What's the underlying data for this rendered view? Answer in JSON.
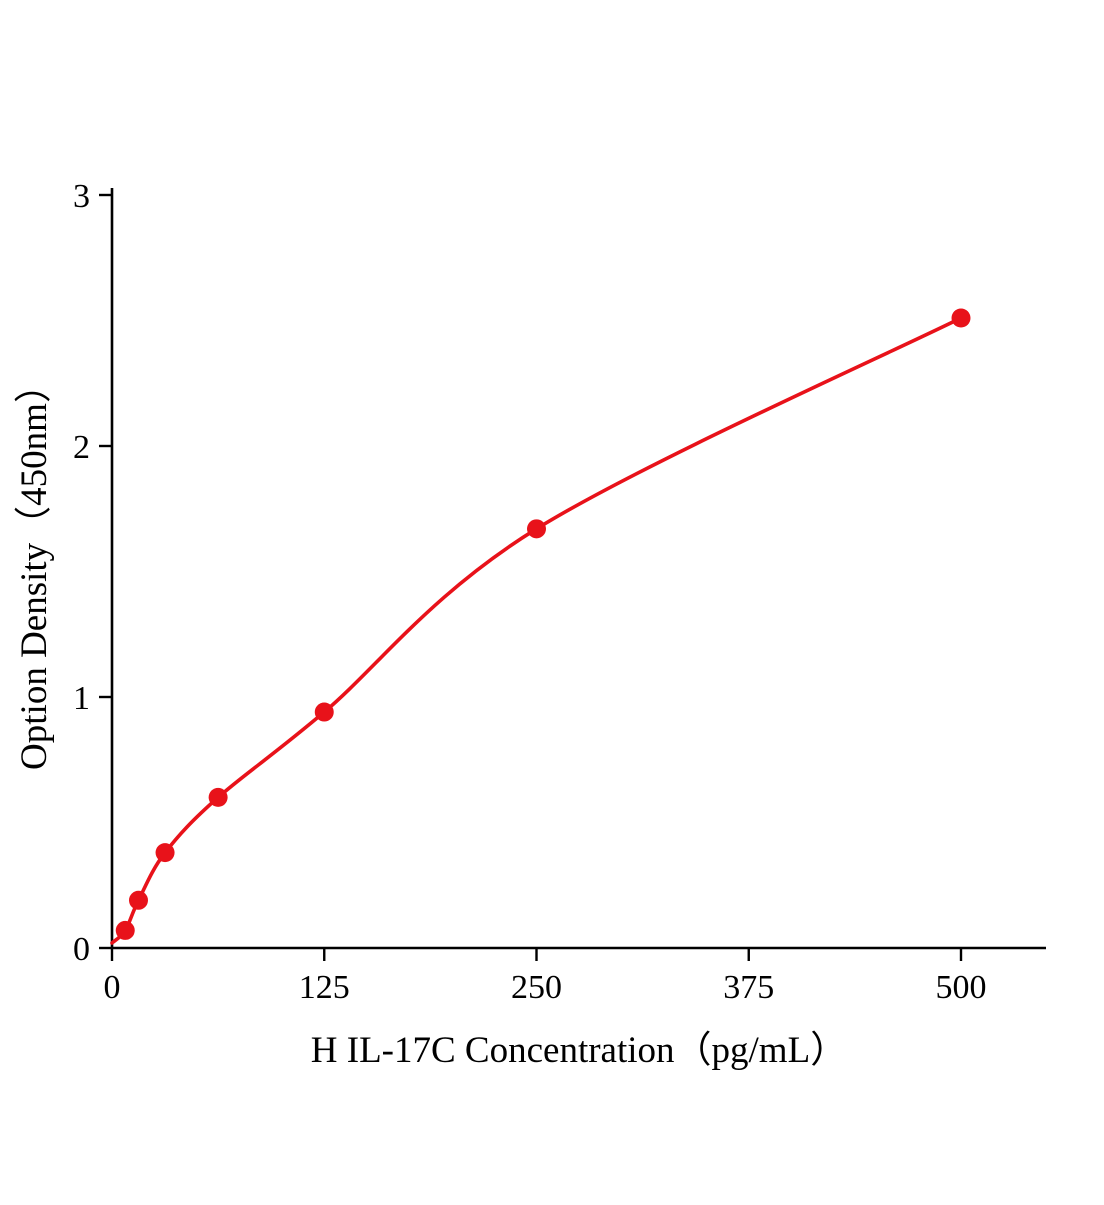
{
  "chart_data": {
    "type": "scatter",
    "title": "",
    "xlabel": "H IL-17C Concentration（pg/mL）",
    "ylabel": "Option Density（450nm）",
    "x": [
      7.8,
      15.6,
      31.25,
      62.5,
      125,
      250,
      500
    ],
    "y": [
      0.07,
      0.19,
      0.38,
      0.6,
      0.94,
      1.67,
      2.51
    ],
    "curve_start": {
      "x": 0,
      "y": 0.02
    },
    "xticks": [
      0,
      125,
      250,
      375,
      500
    ],
    "yticks": [
      0,
      1,
      2,
      3
    ],
    "xlim": [
      0,
      550
    ],
    "ylim": [
      0,
      3
    ],
    "grid": false,
    "legend": "none",
    "line_color": "#e8121a",
    "marker_color": "#e8121a",
    "axis_color": "#000000"
  }
}
